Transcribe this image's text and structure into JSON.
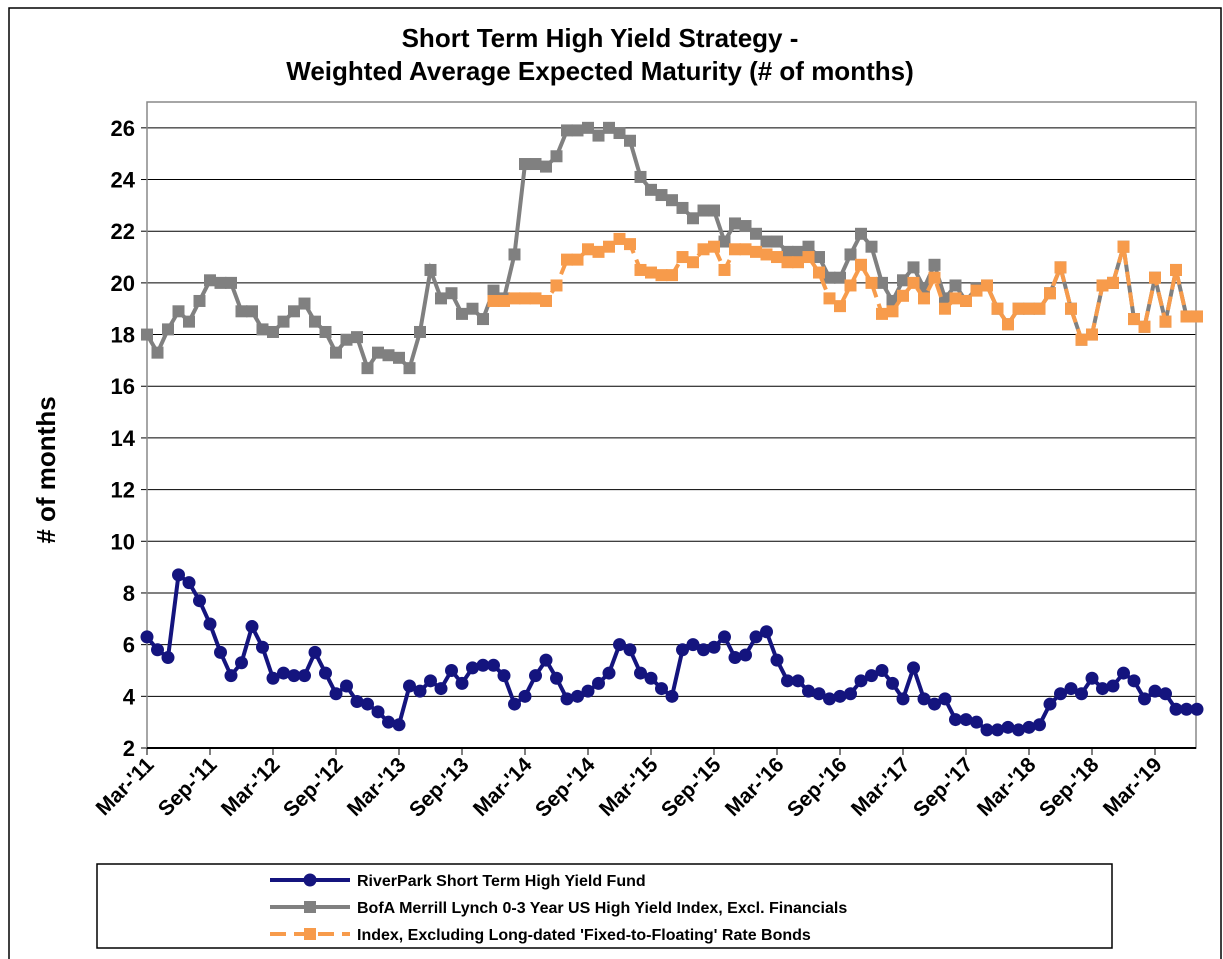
{
  "chart_data": {
    "type": "line",
    "title": "Short Term High Yield Strategy -",
    "subtitle": "Weighted Average Expected Maturity (# of months)",
    "y_label": "# of months",
    "categories": [
      "Mar-'11",
      null,
      null,
      null,
      null,
      null,
      "Sep-'11",
      null,
      null,
      null,
      null,
      null,
      "Mar-'12",
      null,
      null,
      null,
      null,
      null,
      "Sep-'12",
      null,
      null,
      null,
      null,
      null,
      "Mar-'13",
      null,
      null,
      null,
      null,
      null,
      "Sep-'13",
      null,
      null,
      null,
      null,
      null,
      "Mar-'14",
      null,
      null,
      null,
      null,
      null,
      "Sep-'14",
      null,
      null,
      null,
      null,
      null,
      "Mar-'15",
      null,
      null,
      null,
      null,
      null,
      "Sep-'15",
      null,
      null,
      null,
      null,
      null,
      "Mar-'16",
      null,
      null,
      null,
      null,
      null,
      "Sep-'16",
      null,
      null,
      null,
      null,
      null,
      "Mar-'17",
      null,
      null,
      null,
      null,
      null,
      "Sep-'17",
      null,
      null,
      null,
      null,
      null,
      "Mar-'18",
      null,
      null,
      null,
      null,
      null,
      "Sep-'18",
      null,
      null,
      null,
      null,
      null,
      "Mar-'19",
      null,
      null,
      null,
      null
    ],
    "series": [
      {
        "name": "RiverPark Short Term High Yield Fund",
        "color": "#14147e",
        "marker": "circle",
        "dash": false,
        "values": [
          6.3,
          5.8,
          5.5,
          8.7,
          8.4,
          7.7,
          6.8,
          5.7,
          4.8,
          5.3,
          6.7,
          5.9,
          4.7,
          4.9,
          4.8,
          4.8,
          5.7,
          4.9,
          4.1,
          4.4,
          3.8,
          3.7,
          3.4,
          3.0,
          2.9,
          4.4,
          4.2,
          4.6,
          4.3,
          5.0,
          4.5,
          5.1,
          5.2,
          5.2,
          4.8,
          3.7,
          4.0,
          4.8,
          5.4,
          4.7,
          3.9,
          4.0,
          4.2,
          4.5,
          4.9,
          6.0,
          5.8,
          4.9,
          4.7,
          4.3,
          4.0,
          5.8,
          6.0,
          5.8,
          5.9,
          6.3,
          5.5,
          5.6,
          6.3,
          6.5,
          5.4,
          4.6,
          4.6,
          4.2,
          4.1,
          3.9,
          4.0,
          4.1,
          4.6,
          4.8,
          5.0,
          4.5,
          3.9,
          5.1,
          3.9,
          3.7,
          3.9,
          3.1,
          3.1,
          3.0,
          2.7,
          2.7,
          2.8,
          2.7,
          2.8,
          2.9,
          3.7,
          4.1,
          4.3,
          4.1,
          4.7,
          4.3,
          4.4,
          4.9,
          4.6,
          3.9,
          4.2,
          4.1,
          3.5,
          3.5,
          3.5
        ]
      },
      {
        "name": "BofA Merrill Lynch 0-3 Year US High Yield Index, Excl. Financials",
        "color": "#808080",
        "marker": "square",
        "dash": false,
        "values": [
          18.0,
          17.3,
          18.2,
          18.9,
          18.5,
          19.3,
          20.1,
          20.0,
          20.0,
          18.9,
          18.9,
          18.2,
          18.1,
          18.5,
          18.9,
          19.2,
          18.5,
          18.1,
          17.3,
          17.8,
          17.9,
          16.7,
          17.3,
          17.2,
          17.1,
          16.7,
          18.1,
          20.5,
          19.4,
          19.6,
          18.8,
          19.0,
          18.6,
          19.7,
          19.4,
          21.1,
          24.6,
          24.6,
          24.5,
          24.9,
          25.9,
          25.9,
          26.0,
          25.7,
          26.0,
          25.8,
          25.5,
          24.1,
          23.6,
          23.4,
          23.2,
          22.9,
          22.5,
          22.8,
          22.8,
          21.6,
          22.3,
          22.2,
          21.9,
          21.6,
          21.6,
          21.2,
          21.2,
          21.4,
          21.0,
          20.2,
          20.2,
          21.1,
          21.9,
          21.4,
          20.0,
          19.3,
          20.1,
          20.6,
          19.8,
          20.7,
          19.4,
          19.9,
          19.3,
          19.8,
          19.9,
          19.0,
          18.4,
          19.0,
          19.0,
          19.0,
          19.6,
          20.6,
          19.0,
          17.8,
          18.0,
          19.9,
          20.0,
          21.4,
          18.6,
          18.3,
          20.2,
          18.5,
          20.5,
          18.7,
          18.7
        ]
      },
      {
        "name": "Index, Excluding Long-dated 'Fixed-to-Floating' Rate Bonds",
        "color": "#f79b4b",
        "marker": "square",
        "dash": true,
        "values": [
          null,
          null,
          null,
          null,
          null,
          null,
          null,
          null,
          null,
          null,
          null,
          null,
          null,
          null,
          null,
          null,
          null,
          null,
          null,
          null,
          null,
          null,
          null,
          null,
          null,
          null,
          null,
          null,
          null,
          null,
          null,
          null,
          null,
          19.3,
          19.3,
          19.4,
          19.4,
          19.4,
          19.3,
          19.9,
          20.9,
          20.9,
          21.3,
          21.2,
          21.4,
          21.7,
          21.5,
          20.5,
          20.4,
          20.3,
          20.3,
          21.0,
          20.8,
          21.3,
          21.4,
          20.5,
          21.3,
          21.3,
          21.2,
          21.1,
          21.0,
          20.8,
          20.8,
          21.0,
          20.4,
          19.4,
          19.1,
          19.9,
          20.7,
          20.0,
          18.8,
          18.9,
          19.5,
          20.0,
          19.4,
          20.2,
          19.0,
          19.4,
          19.3,
          19.7,
          19.9,
          19.0,
          18.4,
          19.0,
          19.0,
          19.0,
          19.6,
          20.6,
          19.0,
          17.8,
          18.0,
          19.9,
          20.0,
          21.4,
          18.6,
          18.3,
          20.2,
          18.5,
          20.5,
          18.7,
          18.7
        ]
      }
    ],
    "ylim": [
      2,
      27
    ],
    "yticks": [
      2,
      4,
      6,
      8,
      10,
      12,
      14,
      16,
      18,
      20,
      22,
      24,
      26
    ],
    "grid": true,
    "legend": "bottom"
  }
}
